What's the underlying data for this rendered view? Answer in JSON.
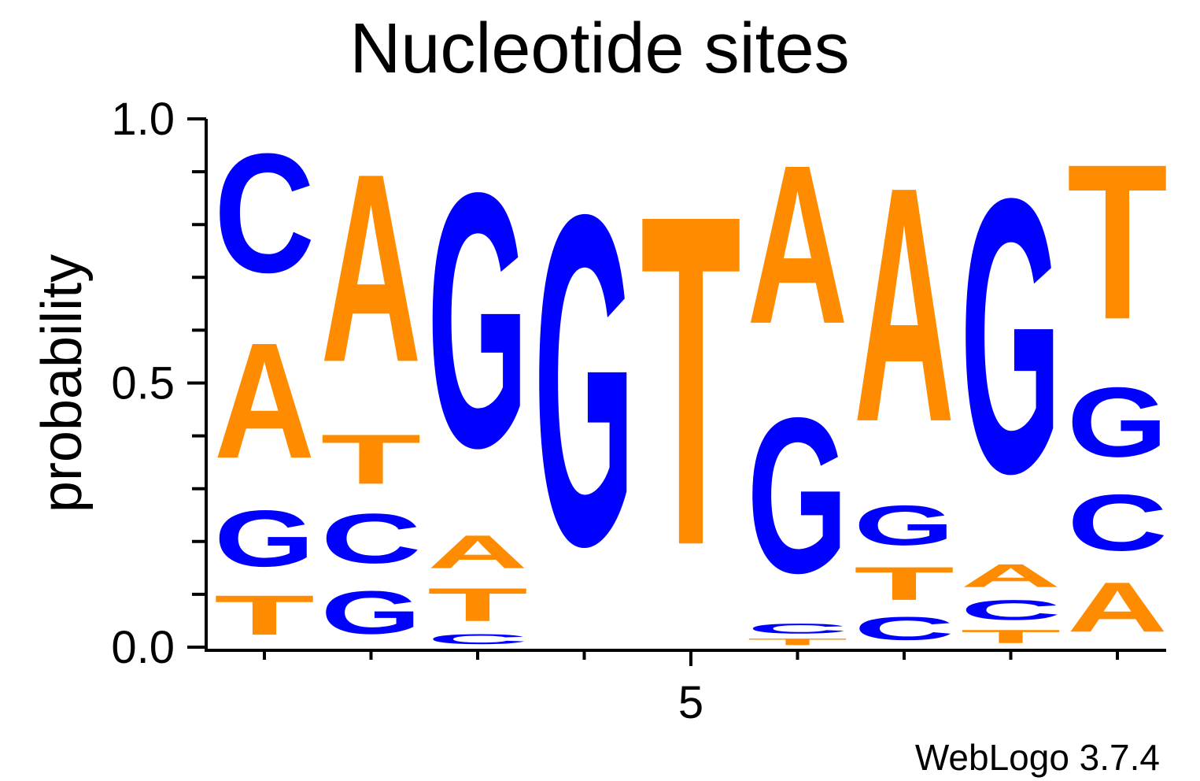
{
  "chart_data": {
    "type": "sequence-logo",
    "title": "Nucleotide sites",
    "ylabel": "probability",
    "xlabel": "",
    "ylim": [
      0,
      1
    ],
    "y_ticks": [
      "0.0",
      "0.5",
      "1.0"
    ],
    "x_tick_labels": [
      {
        "position": 5,
        "label": "5"
      }
    ],
    "footer": "WebLogo 3.7.4",
    "colors": {
      "A": "#ff8c00",
      "T": "#ff8c00",
      "C": "#0000ff",
      "G": "#0000ff"
    },
    "positions": [
      {
        "position": 1,
        "stack": [
          {
            "base": "T",
            "value": 0.12
          },
          {
            "base": "G",
            "value": 0.17
          },
          {
            "base": "A",
            "value": 0.35
          },
          {
            "base": "C",
            "value": 0.36
          }
        ]
      },
      {
        "position": 2,
        "stack": [
          {
            "base": "G",
            "value": 0.13
          },
          {
            "base": "C",
            "value": 0.15
          },
          {
            "base": "T",
            "value": 0.15
          },
          {
            "base": "A",
            "value": 0.57
          }
        ]
      },
      {
        "position": 3,
        "stack": [
          {
            "base": "C",
            "value": 0.03
          },
          {
            "base": "T",
            "value": 0.1
          },
          {
            "base": "A",
            "value": 0.1
          },
          {
            "base": "G",
            "value": 0.77
          }
        ]
      },
      {
        "position": 4,
        "stack": [
          {
            "base": "G",
            "value": 1.0
          }
        ]
      },
      {
        "position": 5,
        "stack": [
          {
            "base": "T",
            "value": 1.0
          }
        ]
      },
      {
        "position": 6,
        "stack": [
          {
            "base": "T",
            "value": 0.02
          },
          {
            "base": "C",
            "value": 0.03
          },
          {
            "base": "G",
            "value": 0.47
          },
          {
            "base": "A",
            "value": 0.48
          }
        ]
      },
      {
        "position": 7,
        "stack": [
          {
            "base": "C",
            "value": 0.07
          },
          {
            "base": "T",
            "value": 0.1
          },
          {
            "base": "G",
            "value": 0.12
          },
          {
            "base": "A",
            "value": 0.71
          }
        ]
      },
      {
        "position": 8,
        "stack": [
          {
            "base": "T",
            "value": 0.04
          },
          {
            "base": "C",
            "value": 0.06
          },
          {
            "base": "A",
            "value": 0.07
          },
          {
            "base": "G",
            "value": 0.83
          }
        ]
      },
      {
        "position": 9,
        "stack": [
          {
            "base": "A",
            "value": 0.15
          },
          {
            "base": "C",
            "value": 0.17
          },
          {
            "base": "G",
            "value": 0.21
          },
          {
            "base": "T",
            "value": 0.47
          }
        ]
      }
    ]
  }
}
